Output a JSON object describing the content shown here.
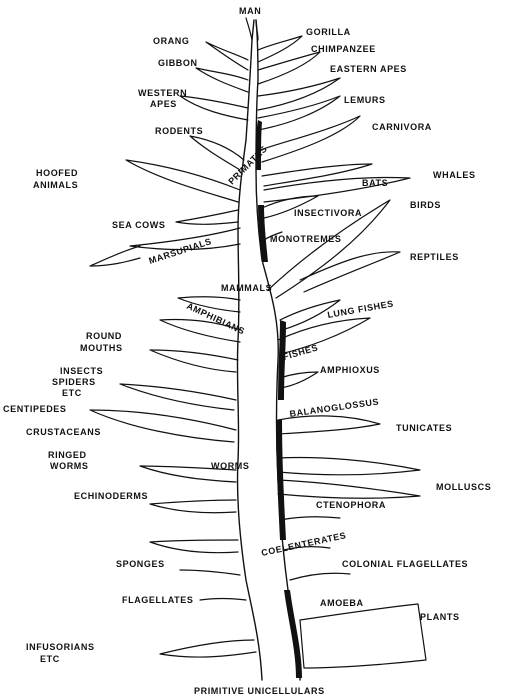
{
  "labels": {
    "man": "MAN",
    "gorilla": "GORILLA",
    "orang": "ORANG",
    "chimpanzee": "CHIMPANZEE",
    "gibbon": "GIBBON",
    "eastern_apes": "EASTERN APES",
    "western_apes_1": "WESTERN",
    "western_apes_2": "APES",
    "lemurs": "LEMURS",
    "rodents": "RODENTS",
    "carnivora": "CARNIVORA",
    "primates": "PRIMATES",
    "hoofed_animals_1": "HOOFED",
    "hoofed_animals_2": "ANIMALS",
    "bats": "BATS",
    "whales": "WHALES",
    "birds": "BIRDS",
    "insectivora": "INSECTIVORA",
    "sea_cows": "SEA COWS",
    "monotremes": "MONOTREMES",
    "marsupials": "MARSUPIALS",
    "reptiles": "REPTILES",
    "mammals": "MAMMALS",
    "lung_fishes": "LUNG FISHES",
    "amphibians": "AMPHIBIANS",
    "round_mouths_1": "ROUND",
    "round_mouths_2": "MOUTHS",
    "fishes": "FISHES",
    "insects": "INSECTS",
    "spiders_1": "SPIDERS",
    "spiders_2": "ETC",
    "amphioxus": "AMPHIOXUS",
    "centipedes": "CENTIPEDES",
    "balanoglossus": "BALANOGLOSSUS",
    "crustaceans": "CRUSTACEANS",
    "tunicates": "TUNICATES",
    "ringed_worms_1": "RINGED",
    "ringed_worms_2": "WORMS",
    "worms": "WORMS",
    "molluscs": "MOLLUSCS",
    "echinoderms": "ECHINODERMS",
    "ctenophora": "CTENOPHORA",
    "coelenterates": "COELENTERATES",
    "sponges": "SPONGES",
    "colonial_flagellates": "COLONIAL FLAGELLATES",
    "flagellates": "FLAGELLATES",
    "amoeba": "AMOEBA",
    "plants": "PLANTS",
    "infusorians_1": "INFUSORIANS",
    "infusorians_2": "ETC",
    "primitive_unicellulars": "PRIMITIVE UNICELLULARS"
  }
}
